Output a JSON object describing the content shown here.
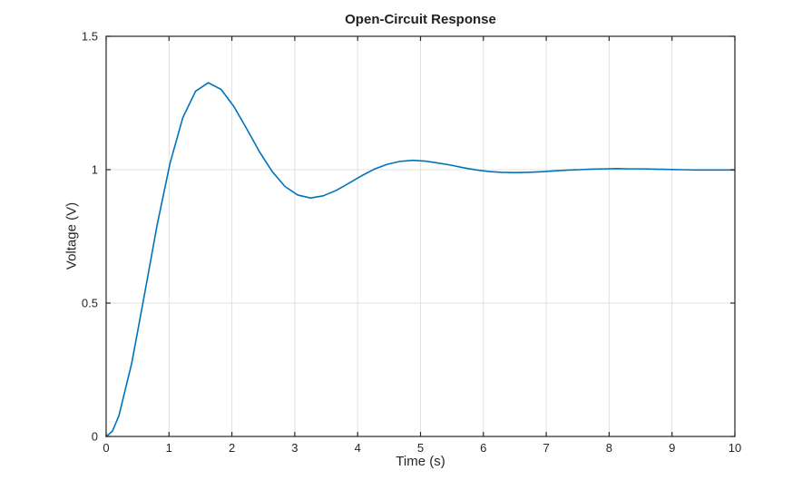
{
  "figure": {
    "background": "#ffffff"
  },
  "chart_data": {
    "type": "line",
    "title": "Open-Circuit Response",
    "xlabel": "Time (s)",
    "ylabel": "Voltage (V)",
    "xlim": [
      0,
      10
    ],
    "ylim": [
      0,
      1.5
    ],
    "x_ticks": [
      0,
      1,
      2,
      3,
      4,
      5,
      6,
      7,
      8,
      9,
      10
    ],
    "x_tick_labels": [
      "0",
      "1",
      "2",
      "3",
      "4",
      "5",
      "6",
      "7",
      "8",
      "9",
      "10"
    ],
    "y_ticks": [
      0,
      0.5,
      1,
      1.5
    ],
    "y_tick_labels": [
      "0",
      "0.5",
      "1",
      "1.5"
    ],
    "grid": true,
    "legend": false,
    "box": true,
    "colors": {
      "line": "#0072bd",
      "axis": "#262626",
      "grid": "#e0e0e0",
      "background": "#ffffff"
    },
    "series": [
      {
        "name": "voltage",
        "x": [
          0,
          0.1,
          0.203,
          0.406,
          0.609,
          0.812,
          1.016,
          1.219,
          1.422,
          1.625,
          1.828,
          2.031,
          2.234,
          2.437,
          2.641,
          2.844,
          3.047,
          3.25,
          3.453,
          3.656,
          3.859,
          4.062,
          4.265,
          4.468,
          4.672,
          4.875,
          5.078,
          5.281,
          5.484,
          5.687,
          5.89,
          6.093,
          6.296,
          6.5,
          6.703,
          6.906,
          7.109,
          7.312,
          7.515,
          7.718,
          7.921,
          8.124,
          8.327,
          8.531,
          8.734,
          8.937,
          9.14,
          9.343,
          9.546,
          9.749,
          9.952,
          10
        ],
        "y": [
          0,
          0.02,
          0.078,
          0.274,
          0.531,
          0.794,
          1.024,
          1.195,
          1.294,
          1.326,
          1.301,
          1.237,
          1.154,
          1.068,
          0.993,
          0.937,
          0.905,
          0.894,
          0.902,
          0.922,
          0.949,
          0.977,
          1.002,
          1.02,
          1.031,
          1.035,
          1.032,
          1.025,
          1.017,
          1.007,
          0.999,
          0.993,
          0.99,
          0.989,
          0.99,
          0.992,
          0.995,
          0.998,
          1.0,
          1.002,
          1.003,
          1.004,
          1.003,
          1.003,
          1.002,
          1.001,
          1.0,
          0.999,
          0.999,
          0.999,
          0.999,
          0.999
        ]
      }
    ]
  }
}
